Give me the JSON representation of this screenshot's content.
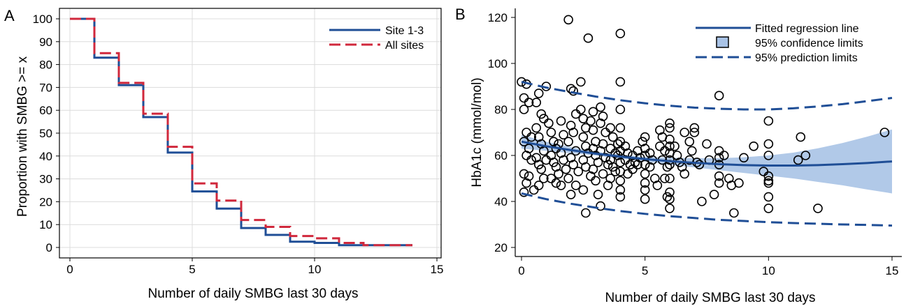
{
  "chart_data": [
    {
      "type": "line",
      "panel_label": "A",
      "xlabel": "Number of daily SMBG last 30 days",
      "ylabel": "Proportion with SMBG >= x",
      "xlim": [
        0,
        15
      ],
      "ylim": [
        0,
        100
      ],
      "xticks": [
        0,
        5,
        10,
        15
      ],
      "yticks": [
        0,
        10,
        20,
        30,
        40,
        50,
        60,
        70,
        80,
        90,
        100
      ],
      "grid": true,
      "legend_position": "top-right",
      "step": true,
      "series": [
        {
          "name": "Site 1-3",
          "style": "solid",
          "color": "#1f4e96",
          "x": [
            0,
            1,
            2,
            3,
            4,
            5,
            6,
            7,
            8,
            9,
            10,
            11,
            12,
            13,
            14
          ],
          "y": [
            100,
            83,
            71,
            57,
            41.5,
            24.5,
            17,
            8.5,
            5.5,
            2.5,
            2,
            1,
            1,
            1,
            1
          ]
        },
        {
          "name": "All sites",
          "style": "dashed",
          "color": "#d0283c",
          "x": [
            0,
            1,
            2,
            3,
            4,
            5,
            6,
            7,
            8,
            9,
            10,
            11,
            12,
            13,
            14
          ],
          "y": [
            100,
            85,
            72,
            58.5,
            44,
            28,
            20.5,
            12,
            9,
            5,
            4,
            2,
            1,
            1,
            1
          ]
        }
      ]
    },
    {
      "type": "scatter",
      "panel_label": "B",
      "xlabel": "Number of daily SMBG last 30 days",
      "ylabel": "HbA1c (mmol/mol)",
      "xlim": [
        0,
        15
      ],
      "ylim": [
        20,
        120
      ],
      "xticks": [
        0,
        5,
        10,
        15
      ],
      "yticks": [
        20,
        40,
        60,
        80,
        100,
        120
      ],
      "grid": false,
      "legend_position": "top-right",
      "legend": {
        "fit": "Fitted regression line",
        "confidence": "95% confidence limits",
        "prediction": "95% prediction limits"
      },
      "colors": {
        "fit": "#1f4e96",
        "band": "#a9c3e6"
      },
      "fit_line": {
        "x": [
          0,
          1,
          2,
          3,
          4,
          5,
          6,
          7,
          8,
          9,
          10,
          11,
          12,
          13,
          14,
          15
        ],
        "y": [
          66,
          64,
          62.3,
          60.8,
          59.5,
          58.4,
          57.5,
          56.8,
          56.2,
          55.8,
          55.6,
          55.6,
          55.8,
          56.2,
          56.7,
          57.4
        ]
      },
      "confidence_limits": {
        "x": [
          0,
          1,
          2,
          3,
          4,
          5,
          6,
          7,
          8,
          9,
          10,
          11,
          12,
          13,
          14,
          15
        ],
        "lower": [
          63,
          62,
          61,
          60,
          58.6,
          57.4,
          56,
          54.8,
          53.6,
          52.4,
          51.2,
          50,
          48.5,
          47,
          45.2,
          43.5
        ],
        "upper": [
          69,
          66,
          63.6,
          61.6,
          60.4,
          59.4,
          59,
          58.8,
          58.8,
          59.2,
          60,
          61.2,
          63.1,
          65.4,
          68.2,
          71.3
        ]
      },
      "prediction_limits": {
        "x": [
          0,
          1,
          2,
          3,
          4,
          5,
          6,
          7,
          8,
          9,
          10,
          11,
          12,
          13,
          14,
          15
        ],
        "lower": [
          43.5,
          41,
          39,
          37.3,
          35.8,
          34.6,
          33.6,
          32.8,
          32,
          31.5,
          31,
          30.6,
          30.3,
          30,
          29.8,
          29.5
        ],
        "upper": [
          92,
          89.5,
          87.5,
          85.6,
          84,
          82.7,
          81.6,
          80.8,
          80.3,
          80,
          80,
          80.5,
          81.3,
          82.3,
          83.6,
          85
        ]
      },
      "points": [
        [
          0,
          92
        ],
        [
          0.2,
          91
        ],
        [
          0.1,
          85
        ],
        [
          0.3,
          83
        ],
        [
          0.1,
          80
        ],
        [
          0.2,
          70
        ],
        [
          0.4,
          68
        ],
        [
          0.1,
          66
        ],
        [
          0.3,
          63
        ],
        [
          0.2,
          60
        ],
        [
          0.4,
          58
        ],
        [
          0.1,
          52
        ],
        [
          0.3,
          51
        ],
        [
          0.2,
          48
        ],
        [
          0.1,
          44
        ],
        [
          0.5,
          45
        ],
        [
          0.6,
          83
        ],
        [
          0.7,
          87
        ],
        [
          0.8,
          78
        ],
        [
          0.9,
          76
        ],
        [
          0.6,
          72
        ],
        [
          0.7,
          68
        ],
        [
          0.8,
          65
        ],
        [
          0.9,
          62
        ],
        [
          0.6,
          59
        ],
        [
          0.7,
          56
        ],
        [
          0.8,
          54
        ],
        [
          0.9,
          50
        ],
        [
          0.7,
          47
        ],
        [
          1.0,
          90
        ],
        [
          1.1,
          74
        ],
        [
          1.0,
          58
        ],
        [
          1.2,
          70
        ],
        [
          1.3,
          66
        ],
        [
          1.4,
          63
        ],
        [
          1.2,
          60
        ],
        [
          1.3,
          57
        ],
        [
          1.4,
          55
        ],
        [
          1.5,
          52
        ],
        [
          1.2,
          50
        ],
        [
          1.4,
          48
        ],
        [
          1.6,
          75
        ],
        [
          1.7,
          69
        ],
        [
          1.5,
          65
        ],
        [
          1.6,
          61
        ],
        [
          1.7,
          58
        ],
        [
          1.8,
          54
        ],
        [
          1.6,
          47
        ],
        [
          1.9,
          119
        ],
        [
          2.0,
          89
        ],
        [
          2.1,
          88
        ],
        [
          2.2,
          78
        ],
        [
          2.0,
          73
        ],
        [
          2.1,
          70
        ],
        [
          1.9,
          66
        ],
        [
          2.2,
          62
        ],
        [
          2.0,
          59
        ],
        [
          2.1,
          56
        ],
        [
          2.3,
          53
        ],
        [
          1.9,
          50
        ],
        [
          2.2,
          47
        ],
        [
          2.0,
          43
        ],
        [
          2.4,
          92
        ],
        [
          2.4,
          80
        ],
        [
          2.5,
          76
        ],
        [
          2.6,
          72
        ],
        [
          2.5,
          68
        ],
        [
          2.6,
          64
        ],
        [
          2.7,
          61
        ],
        [
          2.5,
          58
        ],
        [
          2.6,
          55
        ],
        [
          2.8,
          51
        ],
        [
          2.5,
          45
        ],
        [
          2.6,
          35
        ],
        [
          2.7,
          111
        ],
        [
          2.9,
          79
        ],
        [
          2.8,
          75
        ],
        [
          2.9,
          71
        ],
        [
          3.0,
          66
        ],
        [
          2.9,
          63
        ],
        [
          3.0,
          60
        ],
        [
          3.1,
          57
        ],
        [
          2.9,
          54
        ],
        [
          3.0,
          49
        ],
        [
          3.1,
          43
        ],
        [
          3.2,
          38
        ],
        [
          3.2,
          81
        ],
        [
          3.3,
          77
        ],
        [
          3.2,
          74
        ],
        [
          3.4,
          70
        ],
        [
          3.3,
          65
        ],
        [
          3.2,
          62
        ],
        [
          3.4,
          59
        ],
        [
          3.5,
          56
        ],
        [
          3.3,
          52
        ],
        [
          3.5,
          47
        ],
        [
          3.6,
          72
        ],
        [
          3.7,
          68
        ],
        [
          3.6,
          63
        ],
        [
          3.8,
          61
        ],
        [
          3.6,
          58
        ],
        [
          3.7,
          55
        ],
        [
          3.8,
          53
        ],
        [
          3.6,
          50
        ],
        [
          3.9,
          65
        ],
        [
          3.9,
          60
        ],
        [
          4.0,
          113
        ],
        [
          4.0,
          92
        ],
        [
          4.0,
          80
        ],
        [
          4.0,
          72
        ],
        [
          4.0,
          66
        ],
        [
          4.0,
          62
        ],
        [
          4.0,
          57
        ],
        [
          4.0,
          53
        ],
        [
          4.0,
          49
        ],
        [
          4.0,
          45
        ],
        [
          4.0,
          42
        ],
        [
          4.2,
          64
        ],
        [
          4.3,
          61
        ],
        [
          4.2,
          58
        ],
        [
          4.4,
          56
        ],
        [
          4.3,
          52
        ],
        [
          4.5,
          60
        ],
        [
          4.6,
          57
        ],
        [
          4.5,
          54
        ],
        [
          4.7,
          62
        ],
        [
          4.8,
          59
        ],
        [
          4.7,
          56
        ],
        [
          4.9,
          66
        ],
        [
          5.0,
          68
        ],
        [
          5.0,
          63
        ],
        [
          5.0,
          60
        ],
        [
          5.0,
          56
        ],
        [
          5.0,
          52
        ],
        [
          5.0,
          48
        ],
        [
          5.0,
          45
        ],
        [
          5.0,
          41
        ],
        [
          5.2,
          61
        ],
        [
          5.3,
          58
        ],
        [
          5.2,
          55
        ],
        [
          5.4,
          50
        ],
        [
          5.5,
          47
        ],
        [
          5.6,
          71
        ],
        [
          5.7,
          68
        ],
        [
          5.6,
          64
        ],
        [
          5.8,
          62
        ],
        [
          5.7,
          58
        ],
        [
          5.9,
          55
        ],
        [
          5.8,
          50
        ],
        [
          5.9,
          42
        ],
        [
          6.0,
          74
        ],
        [
          6.0,
          72
        ],
        [
          6.0,
          67
        ],
        [
          6.0,
          64
        ],
        [
          6.0,
          61
        ],
        [
          6.0,
          58
        ],
        [
          6.0,
          56
        ],
        [
          6.0,
          50
        ],
        [
          6.0,
          44
        ],
        [
          6.0,
          41
        ],
        [
          6.0,
          37
        ],
        [
          6.2,
          64
        ],
        [
          6.3,
          60
        ],
        [
          6.4,
          57
        ],
        [
          6.5,
          55
        ],
        [
          6.6,
          70
        ],
        [
          6.6,
          52
        ],
        [
          6.8,
          66
        ],
        [
          6.9,
          62
        ],
        [
          6.8,
          58
        ],
        [
          7.0,
          72
        ],
        [
          7.0,
          70
        ],
        [
          7.1,
          57
        ],
        [
          7.2,
          56
        ],
        [
          7.3,
          40
        ],
        [
          7.5,
          65
        ],
        [
          7.6,
          58
        ],
        [
          7.8,
          43
        ],
        [
          8.0,
          86
        ],
        [
          8.0,
          62
        ],
        [
          8.0,
          59
        ],
        [
          8.0,
          56
        ],
        [
          8.0,
          51
        ],
        [
          8.0,
          48
        ],
        [
          8.2,
          60
        ],
        [
          8.4,
          50
        ],
        [
          8.5,
          47
        ],
        [
          8.6,
          35
        ],
        [
          8.8,
          48
        ],
        [
          9.0,
          59
        ],
        [
          9.4,
          64
        ],
        [
          9.8,
          53
        ],
        [
          10.0,
          75
        ],
        [
          10.0,
          65
        ],
        [
          10.0,
          60
        ],
        [
          10.0,
          51
        ],
        [
          10.0,
          49
        ],
        [
          10.0,
          48
        ],
        [
          10.0,
          42
        ],
        [
          10.0,
          37
        ],
        [
          11.2,
          58
        ],
        [
          11.3,
          68
        ],
        [
          11.5,
          60
        ],
        [
          12.0,
          37
        ],
        [
          14.7,
          70
        ]
      ]
    }
  ]
}
